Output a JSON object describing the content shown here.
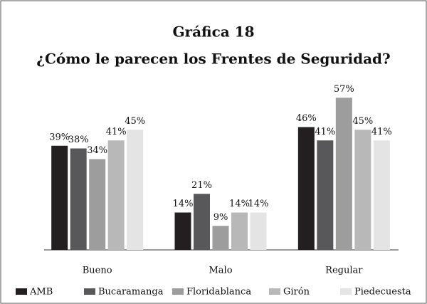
{
  "chart_data": {
    "type": "bar",
    "title": "Gráfica 18",
    "subtitle": "¿Cómo le parecen los Frentes de Seguridad?",
    "categories": [
      "Bueno",
      "Malo",
      "Regular"
    ],
    "series": [
      {
        "name": "AMB",
        "color": "#231f20",
        "values": [
          39,
          14,
          46
        ],
        "value_labels": [
          "39%",
          "14%",
          "46%"
        ]
      },
      {
        "name": "Bucaramanga",
        "color": "#58585a",
        "values": [
          38,
          21,
          41
        ],
        "value_labels": [
          "38%",
          "21%",
          "41%"
        ]
      },
      {
        "name": "Floridablanca",
        "color": "#9d9d9d",
        "values": [
          34,
          9,
          57
        ],
        "value_labels": [
          "34%",
          "9%",
          "57%"
        ]
      },
      {
        "name": "Girón",
        "color": "#b8b8b8",
        "values": [
          41,
          14,
          45
        ],
        "value_labels": [
          "41%",
          "14%",
          "45%"
        ]
      },
      {
        "name": "Piedecuesta",
        "color": "#e4e4e4",
        "values": [
          45,
          14,
          41
        ],
        "value_labels": [
          "45%",
          "14%",
          "41%"
        ]
      }
    ],
    "ylim": [
      0,
      60
    ]
  }
}
